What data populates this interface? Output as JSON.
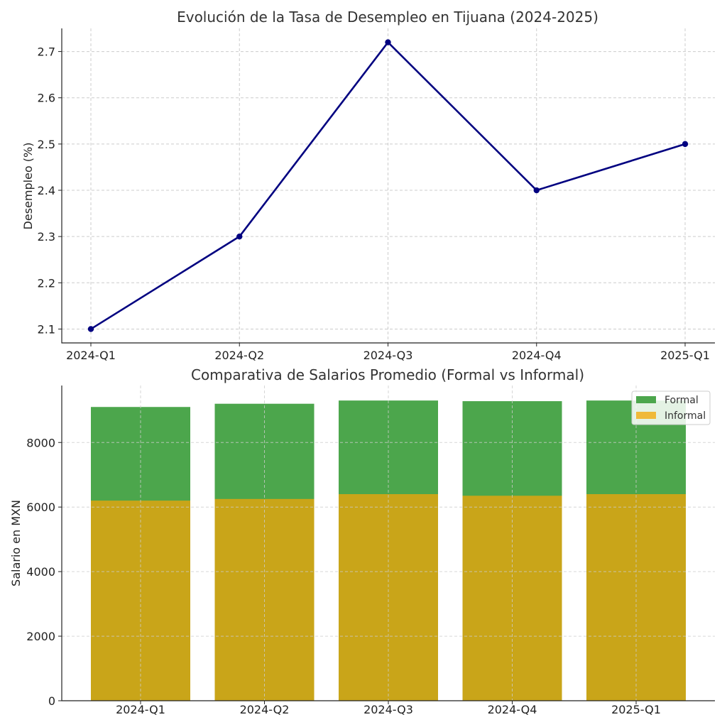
{
  "chart_data": [
    {
      "type": "line",
      "title": "Evolución de la Tasa de Desempleo en Tijuana (2024-2025)",
      "xlabel": "",
      "ylabel": "Desempleo (%)",
      "categories": [
        "2024-Q1",
        "2024-Q2",
        "2024-Q3",
        "2024-Q4",
        "2025-Q1"
      ],
      "series": [
        {
          "values": [
            2.1,
            2.3,
            2.72,
            2.4,
            2.5
          ],
          "color": "#000080"
        }
      ],
      "yticks": [
        "2.1",
        "2.2",
        "2.3",
        "2.4",
        "2.5",
        "2.6",
        "2.7"
      ],
      "ylim": [
        2.07,
        2.75
      ],
      "grid": true
    },
    {
      "type": "bar",
      "stacked": false,
      "overlay": true,
      "title": "Comparativa de Salarios Promedio (Formal vs Informal)",
      "xlabel": "",
      "ylabel": "Salario en MXN",
      "categories": [
        "2024-Q1",
        "2024-Q2",
        "2024-Q3",
        "2024-Q4",
        "2025-Q1"
      ],
      "series": [
        {
          "name": "Formal",
          "values": [
            9100,
            9200,
            9300,
            9280,
            9300
          ],
          "color": "#4ca64c"
        },
        {
          "name": "Informal",
          "values": [
            6200,
            6250,
            6400,
            6350,
            6400
          ],
          "color": "#f0b93a",
          "overlap_color": "#c9a519"
        }
      ],
      "yticks": [
        "0",
        "2000",
        "4000",
        "6000",
        "8000"
      ],
      "ylim": [
        0,
        9765
      ],
      "legend": "top-right",
      "grid": true
    }
  ]
}
